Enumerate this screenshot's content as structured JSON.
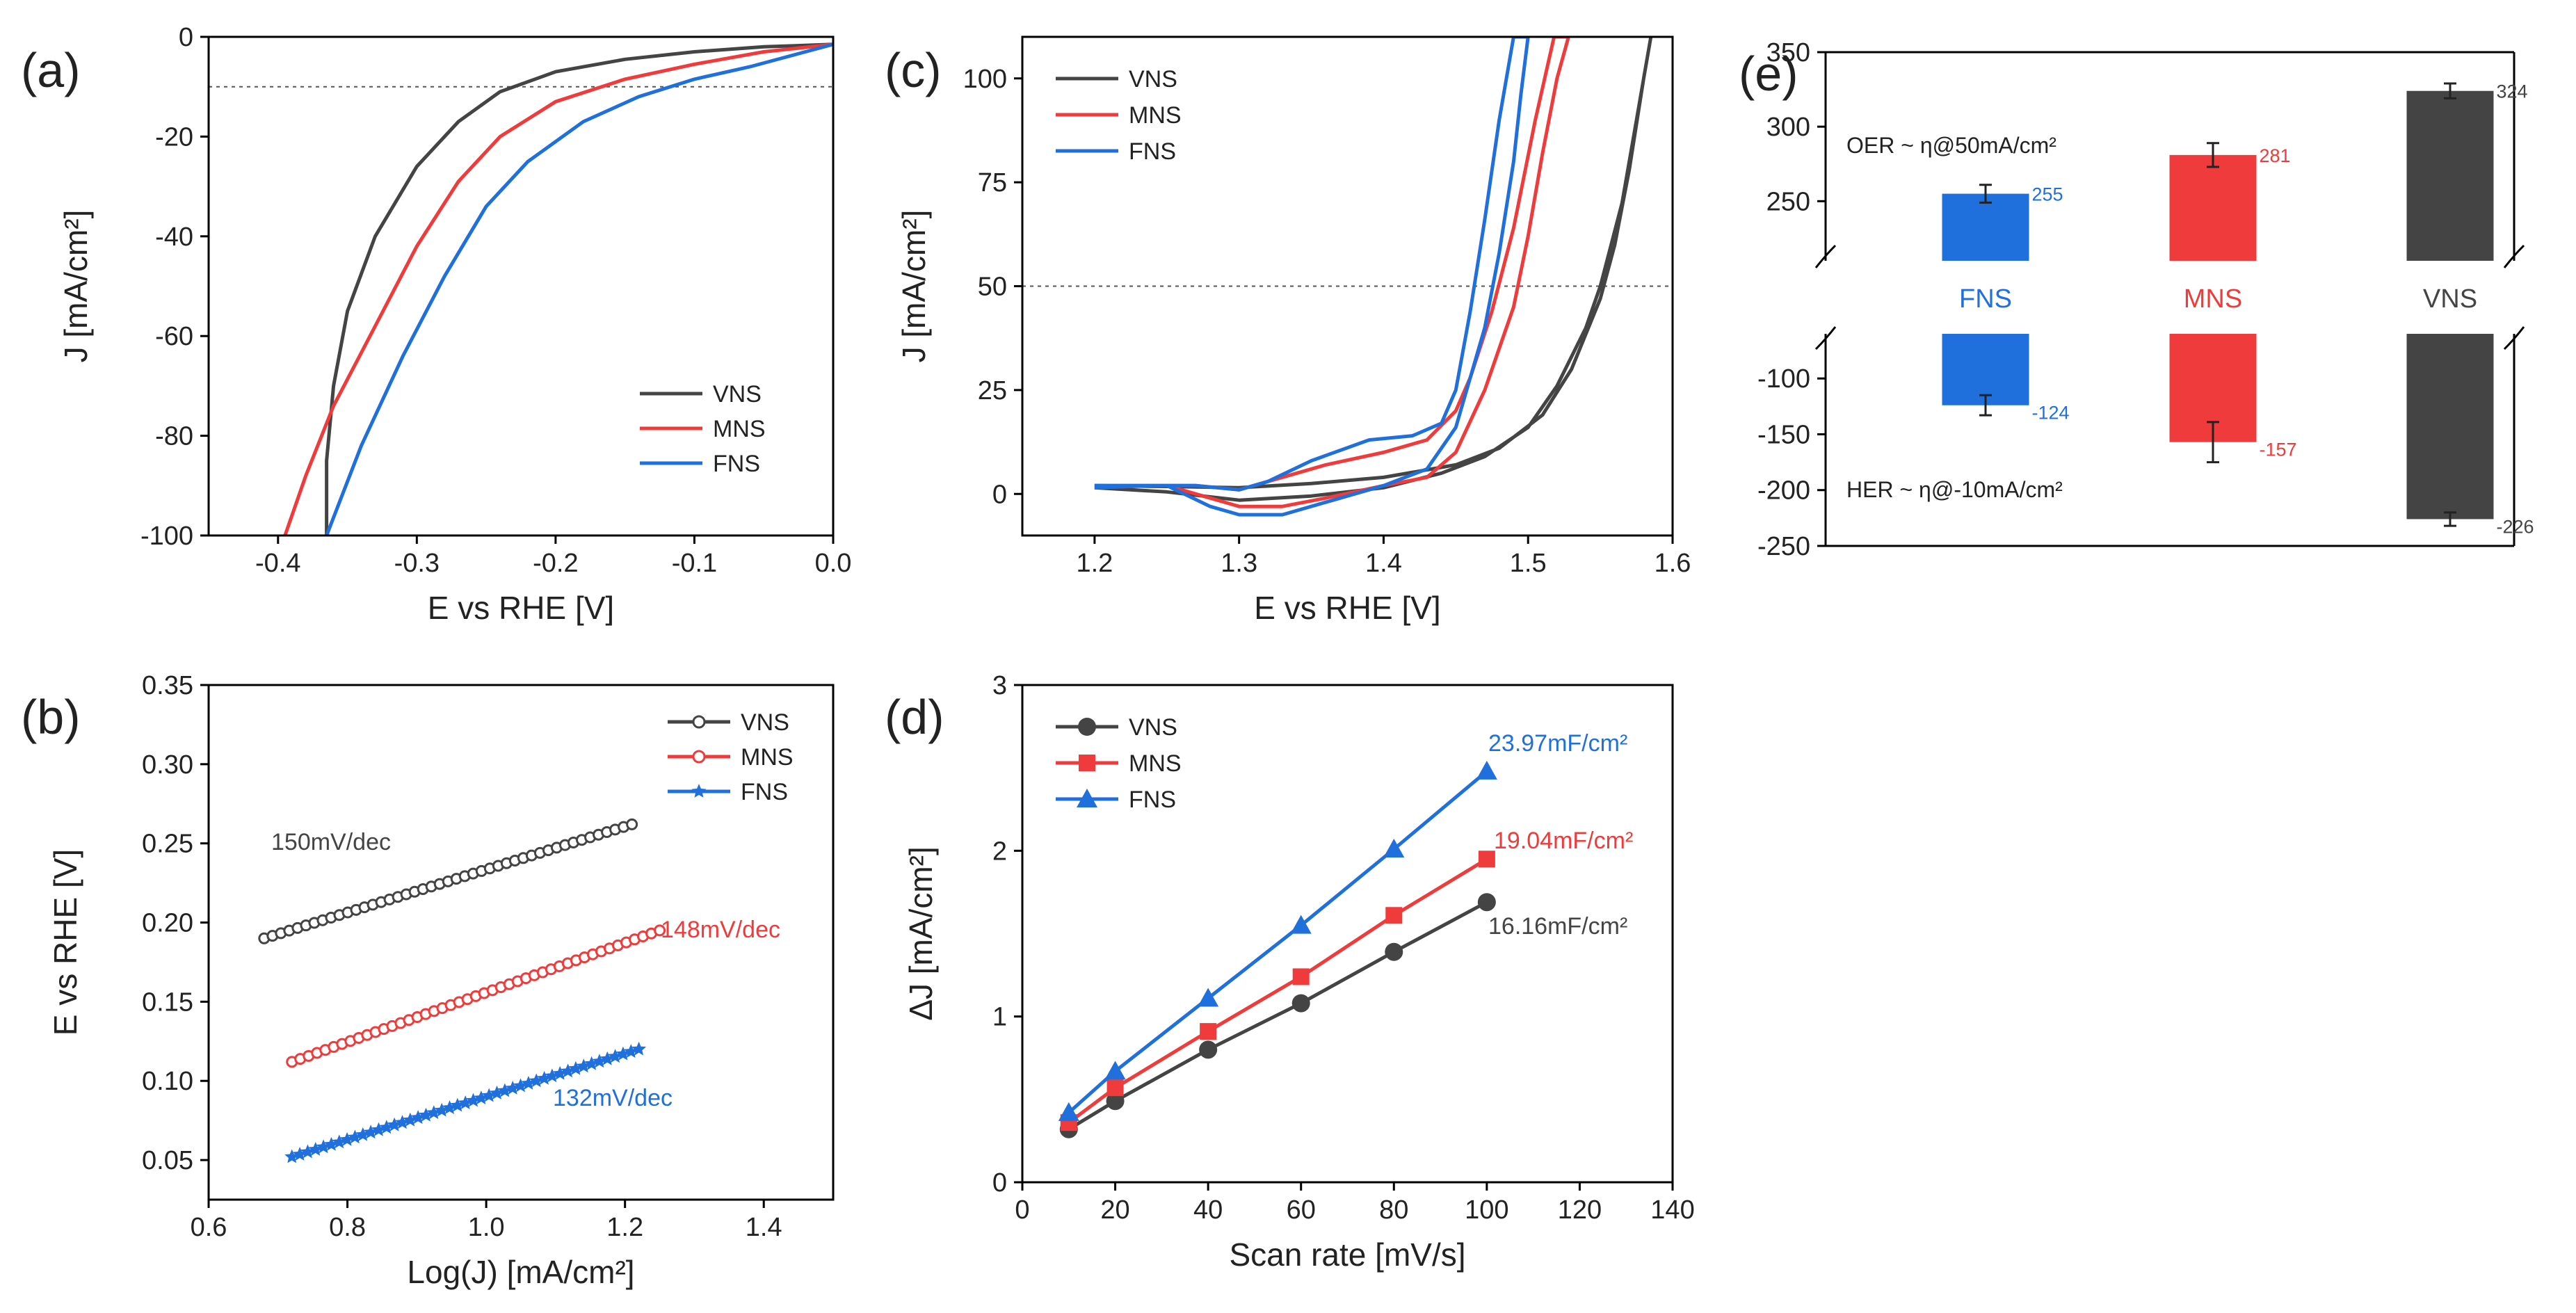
{
  "colors": {
    "VNS": "#444444",
    "MNS": "#ef3b3b",
    "FNS": "#1f6fdd"
  },
  "chart_data": [
    {
      "panel": "(a)",
      "type": "line",
      "xlabel": "E vs RHE [V]",
      "ylabel": "J [mA/cm²]",
      "xlim": [
        -0.45,
        0.0
      ],
      "ylim": [
        -100,
        0
      ],
      "xticks": [
        "-0.4",
        "-0.3",
        "-0.2",
        "-0.1",
        "0.0"
      ],
      "xtick_values": [
        -0.4,
        -0.3,
        -0.2,
        -0.1,
        0.0
      ],
      "yticks": [
        "0",
        "-20",
        "-40",
        "-60",
        "-80",
        "-100"
      ],
      "ytick_values": [
        0,
        -20,
        -40,
        -60,
        -80,
        -100
      ],
      "reference_line_y": -10,
      "legend": [
        "VNS",
        "MNS",
        "FNS"
      ],
      "series": [
        {
          "name": "VNS",
          "x": [
            -0.365,
            -0.365,
            -0.36,
            -0.35,
            -0.33,
            -0.3,
            -0.27,
            -0.24,
            -0.2,
            -0.15,
            -0.1,
            -0.05,
            0.0
          ],
          "y": [
            -100,
            -85,
            -70,
            -55,
            -40,
            -26,
            -17,
            -11,
            -7,
            -4.5,
            -3,
            -2,
            -1.5
          ]
        },
        {
          "name": "MNS",
          "x": [
            -0.395,
            -0.38,
            -0.36,
            -0.33,
            -0.3,
            -0.27,
            -0.24,
            -0.2,
            -0.15,
            -0.1,
            -0.05,
            0.0
          ],
          "y": [
            -100,
            -88,
            -74,
            -58,
            -42,
            -29,
            -20,
            -13,
            -8.5,
            -5.5,
            -3,
            -1.5
          ]
        },
        {
          "name": "FNS",
          "x": [
            -0.365,
            -0.34,
            -0.31,
            -0.28,
            -0.25,
            -0.22,
            -0.18,
            -0.14,
            -0.1,
            -0.06,
            -0.02,
            0.0
          ],
          "y": [
            -100,
            -82,
            -64,
            -48,
            -34,
            -25,
            -17,
            -12,
            -8.5,
            -6,
            -3,
            -1.5
          ]
        }
      ]
    },
    {
      "panel": "(b)",
      "type": "scatter",
      "xlabel": "Log(J) [mA/cm²]",
      "ylabel": "E vs RHE [V]",
      "xlim": [
        0.6,
        1.5
      ],
      "ylim": [
        0.025,
        0.35
      ],
      "xticks": [
        "0.6",
        "0.8",
        "1.0",
        "1.2",
        "1.4"
      ],
      "xtick_values": [
        0.6,
        0.8,
        1.0,
        1.2,
        1.4
      ],
      "yticks": [
        "0.05",
        "0.10",
        "0.15",
        "0.20",
        "0.25",
        "0.30",
        "0.35"
      ],
      "ytick_values": [
        0.05,
        0.1,
        0.15,
        0.2,
        0.25,
        0.3,
        0.35
      ],
      "legend": [
        "VNS",
        "MNS",
        "FNS"
      ],
      "series": [
        {
          "name": "VNS",
          "marker": "circle",
          "x_start": 0.68,
          "x_end": 1.21,
          "y_start": 0.19,
          "y_end": 0.262,
          "annotation": "150mV/dec"
        },
        {
          "name": "MNS",
          "marker": "circle",
          "x_start": 0.72,
          "x_end": 1.25,
          "y_start": 0.112,
          "y_end": 0.195,
          "annotation": "148mV/dec"
        },
        {
          "name": "FNS",
          "marker": "star",
          "x_start": 0.72,
          "x_end": 1.22,
          "y_start": 0.052,
          "y_end": 0.12,
          "annotation": "132mV/dec"
        }
      ]
    },
    {
      "panel": "(c)",
      "type": "line",
      "xlabel": "E vs RHE [V]",
      "ylabel": "J [mA/cm²]",
      "xlim": [
        1.15,
        1.6
      ],
      "ylim": [
        -10,
        110
      ],
      "xticks": [
        "1.2",
        "1.3",
        "1.4",
        "1.5",
        "1.6"
      ],
      "xtick_values": [
        1.2,
        1.3,
        1.4,
        1.5,
        1.6
      ],
      "yticks": [
        "0",
        "25",
        "50",
        "75",
        "100"
      ],
      "ytick_values": [
        0,
        25,
        50,
        75,
        100
      ],
      "reference_line_y": 50,
      "legend": [
        "VNS",
        "MNS",
        "FNS"
      ],
      "series": [
        {
          "name": "VNS",
          "x": [
            1.2,
            1.25,
            1.3,
            1.35,
            1.4,
            1.45,
            1.48,
            1.51,
            1.53,
            1.55,
            1.56,
            1.57,
            1.58,
            1.585,
            1.585,
            1.575,
            1.565,
            1.55,
            1.54,
            1.52,
            1.5,
            1.47,
            1.44,
            1.4,
            1.35,
            1.3,
            1.25,
            1.2
          ],
          "y": [
            2,
            1.8,
            1.5,
            2.5,
            4,
            7,
            11,
            19,
            30,
            47,
            60,
            78,
            100,
            110,
            110,
            90,
            70,
            50,
            40,
            26,
            16,
            9,
            5,
            1.5,
            -0.5,
            -1.5,
            0.5,
            1.5
          ]
        },
        {
          "name": "MNS",
          "x": [
            1.2,
            1.25,
            1.28,
            1.3,
            1.33,
            1.36,
            1.4,
            1.43,
            1.45,
            1.47,
            1.49,
            1.5,
            1.51,
            1.52,
            1.528,
            1.518,
            1.505,
            1.49,
            1.475,
            1.46,
            1.45,
            1.43,
            1.4,
            1.36,
            1.32,
            1.3,
            1.27,
            1.24,
            1.2
          ],
          "y": [
            2,
            2,
            -1,
            -3,
            -3,
            -1,
            2,
            4,
            10,
            25,
            45,
            62,
            82,
            100,
            110,
            110,
            90,
            64,
            44,
            28,
            20,
            13,
            10,
            7,
            3,
            1,
            2,
            2,
            1.5
          ]
        },
        {
          "name": "FNS",
          "x": [
            1.2,
            1.25,
            1.28,
            1.3,
            1.33,
            1.36,
            1.4,
            1.43,
            1.45,
            1.47,
            1.48,
            1.49,
            1.495,
            1.5,
            1.49,
            1.48,
            1.47,
            1.46,
            1.45,
            1.44,
            1.42,
            1.39,
            1.35,
            1.32,
            1.3,
            1.27,
            1.24,
            1.2
          ],
          "y": [
            2,
            2,
            -3,
            -5,
            -5,
            -2,
            2,
            6,
            16,
            40,
            58,
            80,
            96,
            110,
            110,
            90,
            66,
            44,
            25,
            17,
            14,
            13,
            8,
            3,
            1,
            2,
            2,
            1.5
          ]
        }
      ]
    },
    {
      "panel": "(d)",
      "type": "line",
      "xlabel": "Scan rate [mV/s]",
      "ylabel": "ΔJ [mA/cm²]",
      "xlim": [
        0,
        140
      ],
      "ylim": [
        0,
        3
      ],
      "xticks": [
        "0",
        "20",
        "40",
        "60",
        "80",
        "100",
        "120",
        "140"
      ],
      "xtick_values": [
        0,
        20,
        40,
        60,
        80,
        100,
        120,
        140
      ],
      "yticks": [
        "0",
        "1",
        "2",
        "3"
      ],
      "ytick_values": [
        0,
        1,
        2,
        3
      ],
      "legend": [
        "VNS",
        "MNS",
        "FNS"
      ],
      "categories_x": [
        10,
        20,
        40,
        60,
        80,
        100
      ],
      "series": [
        {
          "name": "VNS",
          "marker": "circle",
          "values": [
            0.32,
            0.49,
            0.8,
            1.08,
            1.39,
            1.69
          ],
          "annotation": "16.16mF/cm²"
        },
        {
          "name": "MNS",
          "marker": "square",
          "values": [
            0.36,
            0.57,
            0.91,
            1.24,
            1.61,
            1.95
          ],
          "annotation": "19.04mF/cm²"
        },
        {
          "name": "FNS",
          "marker": "triangle",
          "values": [
            0.42,
            0.67,
            1.11,
            1.55,
            2.01,
            2.48
          ],
          "annotation": "23.97mF/cm²"
        }
      ]
    },
    {
      "panel": "(e)",
      "type": "bar",
      "upper": {
        "title": "OER ~ η@50mA/cm²",
        "range": [
          210,
          350
        ],
        "yticks": [
          "250",
          "300",
          "350"
        ],
        "ytick_values": [
          250,
          300,
          350
        ],
        "bars": [
          {
            "name": "FNS",
            "value": 255,
            "error": 6,
            "label": "255"
          },
          {
            "name": "MNS",
            "value": 281,
            "error": 8,
            "label": "281"
          },
          {
            "name": "VNS",
            "value": 324,
            "error": 5,
            "label": "324"
          }
        ]
      },
      "lower": {
        "title": "HER ~ η@-10mA/cm²",
        "range": [
          -250,
          -60
        ],
        "yticks": [
          "-100",
          "-150",
          "-200",
          "-250"
        ],
        "ytick_values": [
          -100,
          -150,
          -200,
          -250
        ],
        "bars": [
          {
            "name": "FNS",
            "value": -124,
            "error": 9,
            "label": "-124"
          },
          {
            "name": "MNS",
            "value": -157,
            "error": 18,
            "label": "-157"
          },
          {
            "name": "VNS",
            "value": -226,
            "error": 6,
            "label": "-226"
          }
        ]
      },
      "categories": [
        "FNS",
        "MNS",
        "VNS"
      ]
    }
  ]
}
